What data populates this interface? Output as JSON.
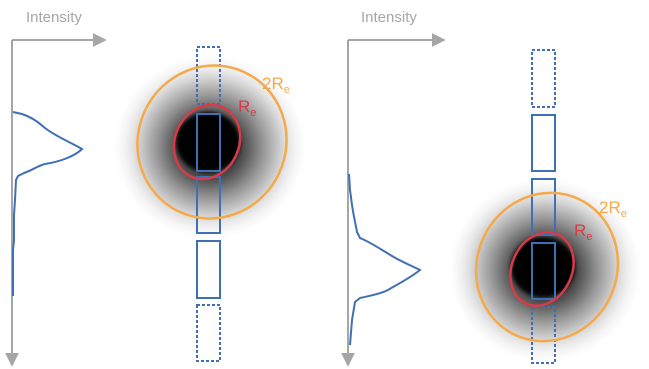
{
  "panels": [
    {
      "axis_label": "Intensity",
      "outer_radius_label": "2R",
      "outer_radius_sub": "e",
      "inner_radius_label": "R",
      "inner_radius_sub": "e"
    },
    {
      "axis_label": "Intensity",
      "outer_radius_label": "2R",
      "outer_radius_sub": "e",
      "inner_radius_label": "R",
      "inner_radius_sub": "e"
    }
  ],
  "colors": {
    "axis": "#a6a6a6",
    "profile": "#3f6fb5",
    "slit": "#3f6fb5",
    "outer_ellipse": "#f5a94a",
    "inner_ellipse": "#d83b46"
  }
}
